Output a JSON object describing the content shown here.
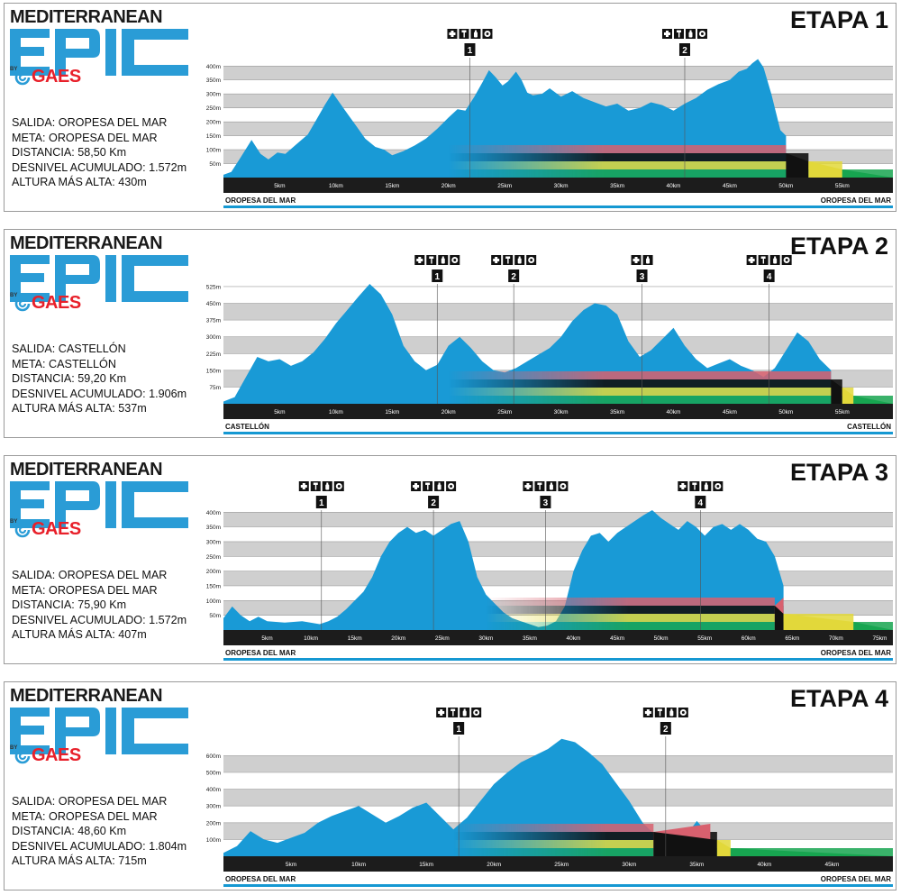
{
  "branding": {
    "wordmark": "MEDITERRANEAN",
    "by": "BY",
    "brand": "GAES",
    "logo_icon": "ear-swirl-icon"
  },
  "colors": {
    "profile": "#199ad6",
    "band_pink": "#d8606e",
    "band_black": "#111111",
    "band_yellow": "#e2d83a",
    "band_green": "#17a550",
    "axis_bar": "#1c1c1c",
    "label_underline": "#1598d2",
    "grid_light": "#ffffff",
    "grid_dark": "#cfcfcf"
  },
  "stages": [
    {
      "title": "ETAPA 1",
      "salida": "SALIDA: OROPESA DEL MAR",
      "meta": "META: OROPESA DEL MAR",
      "distancia": "DISTANCIA: 58,50 Km",
      "desnivel": "DESNIVEL ACUMULADO: 1.572m",
      "altura": "ALTURA MÁS ALTA: 430m",
      "start_label": "OROPESA DEL MAR",
      "end_label": "OROPESA DEL MAR"
    },
    {
      "title": "ETAPA 2",
      "salida": "SALIDA: CASTELLÓN",
      "meta": "META: CASTELLÓN",
      "distancia": "DISTANCIA: 59,20 Km",
      "desnivel": "DESNIVEL ACUMULADO: 1.906m",
      "altura": "ALTURA MÁS ALTA: 537m",
      "start_label": "CASTELLÓN",
      "end_label": "CASTELLÓN"
    },
    {
      "title": "ETAPA 3",
      "salida": "SALIDA: OROPESA DEL MAR",
      "meta": "META: OROPESA DEL MAR",
      "distancia": "DISTANCIA: 75,90 Km",
      "desnivel": "DESNIVEL ACUMULADO: 1.572m",
      "altura": "ALTURA MÁS ALTA: 407m",
      "start_label": "OROPESA DEL MAR",
      "end_label": "OROPESA DEL MAR"
    },
    {
      "title": "ETAPA 4",
      "salida": "SALIDA: OROPESA DEL MAR",
      "meta": "META: OROPESA DEL MAR",
      "distancia": "DISTANCIA: 48,60 Km",
      "desnivel": "DESNIVEL ACUMULADO: 1.804m",
      "altura": "ALTURA MÁS ALTA: 715m",
      "start_label": "OROPESA DEL MAR",
      "end_label": "OROPESA DEL MAR"
    }
  ],
  "chart_data": [
    {
      "type": "area",
      "x_unit": "km",
      "xlim": [
        0,
        59.5
      ],
      "ylim": [
        0,
        430
      ],
      "x_ticks": [
        5,
        10,
        15,
        20,
        25,
        30,
        35,
        40,
        45,
        50,
        55
      ],
      "x_tick_labels": [
        "5km",
        "10km",
        "15km",
        "20km",
        "25km",
        "30km",
        "35km",
        "40km",
        "45km",
        "50km",
        "55km"
      ],
      "y_ticks": [
        50,
        100,
        150,
        200,
        250,
        300,
        350,
        400
      ],
      "y_tick_labels": [
        "50m",
        "100m",
        "150m",
        "200m",
        "250m",
        "300m",
        "350m",
        "400m"
      ],
      "profile": {
        "x": [
          0,
          0.7,
          1.5,
          2.5,
          3.3,
          4,
          4.8,
          5.5,
          6.5,
          7.5,
          8.3,
          9,
          9.7,
          10.3,
          11,
          11.8,
          12.6,
          13.5,
          14.3,
          15,
          16,
          17,
          18,
          19,
          20,
          20.8,
          21.5,
          22.3,
          23,
          23.6,
          24.2,
          24.8,
          25.3,
          26,
          26.5,
          27,
          27.5,
          28.3,
          29,
          30,
          31,
          32,
          33,
          34,
          35,
          36,
          37,
          38,
          39,
          40,
          41,
          42,
          43,
          44,
          45,
          45.8,
          46.5,
          47,
          47.5,
          48,
          48.7,
          49.5,
          50
        ],
        "y": [
          10,
          20,
          70,
          135,
          85,
          65,
          90,
          85,
          120,
          155,
          210,
          260,
          305,
          270,
          230,
          185,
          140,
          110,
          100,
          80,
          95,
          115,
          140,
          175,
          215,
          245,
          240,
          290,
          340,
          385,
          360,
          330,
          345,
          380,
          350,
          305,
          295,
          300,
          320,
          290,
          310,
          285,
          270,
          255,
          265,
          240,
          250,
          270,
          260,
          240,
          265,
          285,
          315,
          335,
          350,
          380,
          390,
          410,
          425,
          395,
          300,
          170,
          150
        ]
      },
      "bands_start_km": 20,
      "bands_end": [
        {
          "name": "band_pink",
          "end_km": 50
        },
        {
          "name": "band_black",
          "end_km": 52
        },
        {
          "name": "band_yellow",
          "end_km": 55
        },
        {
          "name": "band_green",
          "end_km": 59.5
        }
      ],
      "aid_stations": [
        {
          "label": "1",
          "km": 21.9,
          "icons": [
            "first-aid-icon",
            "tools-icon",
            "water-bottle-icon",
            "food-icon"
          ]
        },
        {
          "label": "2",
          "km": 41.0,
          "icons": [
            "first-aid-icon",
            "tools-icon",
            "water-bottle-icon",
            "food-icon"
          ]
        }
      ]
    },
    {
      "type": "area",
      "x_unit": "km",
      "xlim": [
        0,
        59.5
      ],
      "ylim": [
        0,
        537
      ],
      "x_ticks": [
        5,
        10,
        15,
        20,
        25,
        30,
        35,
        40,
        45,
        50,
        55
      ],
      "x_tick_labels": [
        "5km",
        "10km",
        "15km",
        "20km",
        "25km",
        "30km",
        "35km",
        "40km",
        "45km",
        "50km",
        "55km"
      ],
      "y_ticks": [
        75,
        150,
        225,
        300,
        375,
        450,
        525
      ],
      "y_tick_labels": [
        "75m",
        "150m",
        "225m",
        "300m",
        "375m",
        "450m",
        "525m"
      ],
      "profile": {
        "x": [
          0,
          1,
          2,
          3,
          4,
          5,
          6,
          7,
          8,
          9,
          10,
          11,
          12,
          13,
          14,
          15,
          16,
          17,
          18,
          19,
          20,
          21,
          22,
          23,
          24,
          25,
          26,
          27,
          28,
          29,
          30,
          31,
          32,
          33,
          34,
          35,
          36,
          37,
          38,
          39,
          40,
          41,
          42,
          43,
          44,
          45,
          46,
          47,
          48,
          49,
          50,
          51,
          52,
          53,
          54
        ],
        "y": [
          10,
          30,
          120,
          210,
          190,
          200,
          170,
          190,
          230,
          290,
          360,
          420,
          480,
          537,
          490,
          400,
          260,
          190,
          150,
          175,
          260,
          300,
          250,
          190,
          150,
          140,
          160,
          190,
          220,
          250,
          300,
          370,
          420,
          450,
          440,
          400,
          280,
          210,
          240,
          290,
          340,
          260,
          200,
          160,
          180,
          200,
          170,
          150,
          120,
          160,
          240,
          320,
          280,
          200,
          150
        ]
      },
      "bands_start_km": 20,
      "bands_end": [
        {
          "name": "band_pink",
          "end_km": 54
        },
        {
          "name": "band_black",
          "end_km": 55
        },
        {
          "name": "band_yellow",
          "end_km": 56
        },
        {
          "name": "band_green",
          "end_km": 59.5
        }
      ],
      "aid_stations": [
        {
          "label": "1",
          "km": 19.0,
          "icons": [
            "first-aid-icon",
            "tools-icon",
            "water-bottle-icon",
            "food-icon"
          ]
        },
        {
          "label": "2",
          "km": 25.8,
          "icons": [
            "first-aid-icon",
            "tools-icon",
            "water-bottle-icon",
            "food-icon"
          ]
        },
        {
          "label": "3",
          "km": 37.2,
          "icons": [
            "first-aid-icon",
            "water-bottle-icon"
          ]
        },
        {
          "label": "4",
          "km": 48.5,
          "icons": [
            "first-aid-icon",
            "tools-icon",
            "water-bottle-icon",
            "food-icon"
          ]
        }
      ]
    },
    {
      "type": "area",
      "x_unit": "km",
      "xlim": [
        0,
        76.5
      ],
      "ylim": [
        0,
        407
      ],
      "x_ticks": [
        5,
        10,
        15,
        20,
        25,
        30,
        35,
        40,
        45,
        50,
        55,
        60,
        65,
        70,
        75
      ],
      "x_tick_labels": [
        "5km",
        "10km",
        "15km",
        "20km",
        "25km",
        "30km",
        "35km",
        "40km",
        "45km",
        "50km",
        "55km",
        "60km",
        "65km",
        "70km",
        "75km"
      ],
      "y_ticks": [
        50,
        100,
        150,
        200,
        250,
        300,
        350,
        400
      ],
      "y_tick_labels": [
        "50m",
        "100m",
        "150m",
        "200m",
        "250m",
        "300m",
        "350m",
        "400m"
      ],
      "profile": {
        "x": [
          0,
          1,
          2,
          3,
          4,
          5,
          7,
          9,
          11,
          12,
          13,
          14,
          15,
          16,
          17,
          18,
          19,
          20,
          21,
          22,
          23,
          24,
          25,
          26,
          27,
          28,
          29,
          30,
          31,
          32,
          33,
          34,
          35,
          36,
          37,
          38,
          39,
          40,
          41,
          42,
          43,
          44,
          45,
          46,
          47,
          48,
          49,
          50,
          51,
          52,
          53,
          54,
          55,
          56,
          57,
          58,
          59,
          60,
          61,
          62,
          63,
          64
        ],
        "y": [
          40,
          80,
          50,
          30,
          45,
          30,
          25,
          30,
          20,
          30,
          45,
          70,
          100,
          130,
          180,
          250,
          300,
          330,
          350,
          330,
          340,
          320,
          340,
          360,
          370,
          300,
          180,
          120,
          90,
          60,
          40,
          30,
          20,
          10,
          15,
          30,
          80,
          200,
          270,
          320,
          330,
          300,
          330,
          350,
          370,
          390,
          407,
          380,
          360,
          340,
          370,
          350,
          320,
          350,
          360,
          340,
          360,
          340,
          310,
          300,
          250,
          150
        ]
      },
      "bands_start_km": 30,
      "bands_end": [
        {
          "name": "band_pink",
          "end_km": 63
        },
        {
          "name": "band_black",
          "end_km": 64
        },
        {
          "name": "band_yellow",
          "end_km": 72
        },
        {
          "name": "band_green",
          "end_km": 76.5
        }
      ],
      "aid_stations": [
        {
          "label": "1",
          "km": 11.2,
          "icons": [
            "first-aid-icon",
            "tools-icon",
            "water-bottle-icon",
            "food-icon"
          ]
        },
        {
          "label": "2",
          "km": 24.0,
          "icons": [
            "first-aid-icon",
            "tools-icon",
            "water-bottle-icon",
            "food-icon"
          ]
        },
        {
          "label": "3",
          "km": 36.8,
          "icons": [
            "first-aid-icon",
            "tools-icon",
            "water-bottle-icon",
            "food-icon"
          ]
        },
        {
          "label": "4",
          "km": 54.5,
          "icons": [
            "first-aid-icon",
            "tools-icon",
            "water-bottle-icon",
            "food-icon"
          ]
        }
      ]
    },
    {
      "type": "area",
      "x_unit": "km",
      "xlim": [
        0,
        49.5
      ],
      "ylim": [
        0,
        715
      ],
      "x_ticks": [
        5,
        10,
        15,
        20,
        25,
        30,
        35,
        40,
        45
      ],
      "x_tick_labels": [
        "5km",
        "10km",
        "15km",
        "20km",
        "25km",
        "30km",
        "35km",
        "40km",
        "45km"
      ],
      "y_ticks": [
        100,
        200,
        300,
        400,
        500,
        600
      ],
      "y_tick_labels": [
        "100m",
        "200m",
        "300m",
        "400m",
        "500m",
        "600m"
      ],
      "profile": {
        "x": [
          0,
          1,
          2,
          3,
          4,
          5,
          6,
          7,
          8,
          9,
          10,
          11,
          12,
          13,
          14,
          15,
          16,
          17,
          18,
          19,
          20,
          21,
          22,
          23,
          24,
          25,
          26,
          27,
          28,
          29,
          30,
          31,
          32,
          33,
          34,
          35,
          36
        ],
        "y": [
          20,
          60,
          150,
          100,
          80,
          110,
          140,
          200,
          240,
          270,
          300,
          250,
          200,
          240,
          290,
          320,
          240,
          160,
          230,
          330,
          430,
          500,
          560,
          600,
          640,
          700,
          680,
          620,
          550,
          440,
          330,
          200,
          120,
          90,
          100,
          210,
          120
        ]
      },
      "bands_start_km": 17,
      "bands_end": [
        {
          "name": "band_pink",
          "end_km": 31.8
        },
        {
          "name": "band_black",
          "end_km": 36.5
        },
        {
          "name": "band_yellow",
          "end_km": 37.5
        },
        {
          "name": "band_green",
          "end_km": 49.5
        }
      ],
      "aid_stations": [
        {
          "label": "1",
          "km": 17.4,
          "icons": [
            "first-aid-icon",
            "tools-icon",
            "water-bottle-icon",
            "food-icon"
          ]
        },
        {
          "label": "2",
          "km": 32.7,
          "icons": [
            "first-aid-icon",
            "tools-icon",
            "water-bottle-icon",
            "food-icon"
          ]
        }
      ]
    }
  ]
}
